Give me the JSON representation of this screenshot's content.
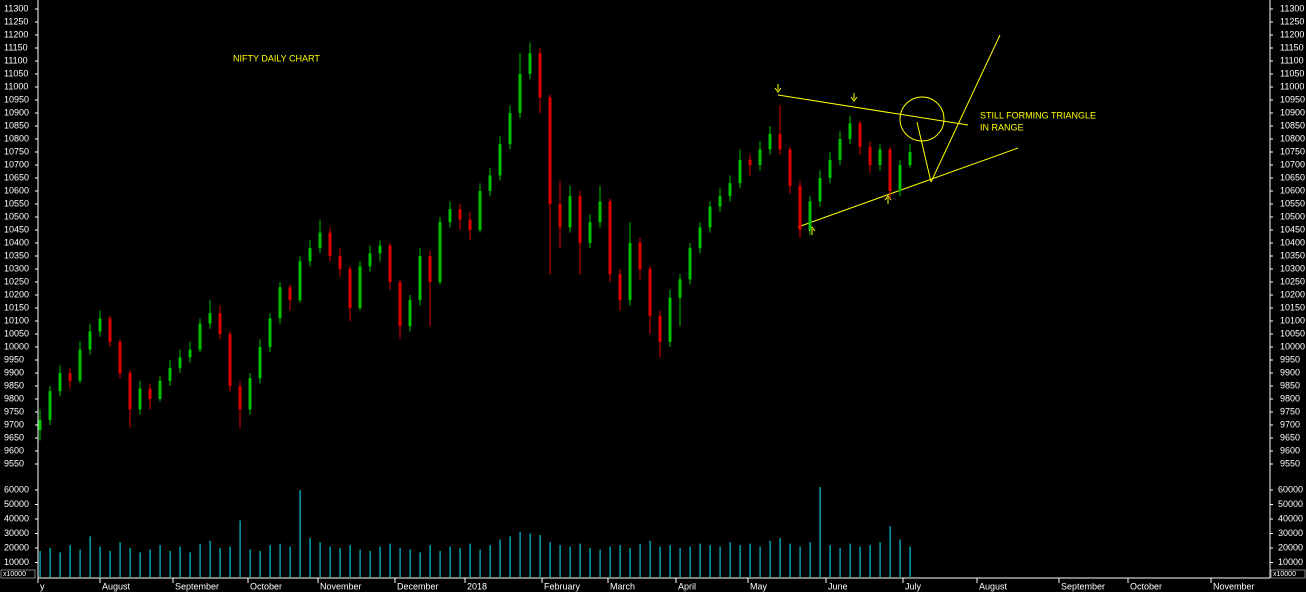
{
  "chart_data": {
    "type": "candlestick",
    "title": "NIFTY DAILY CHART",
    "annotations": [
      "STILL FORMING TRIANGLE",
      "IN RANGE"
    ],
    "volume_unit": "x10000",
    "up_color": "#00c000",
    "down_color": "#e00000",
    "volume_color": "#00c8e0",
    "xlim": [
      -0.2,
      123
    ],
    "xticks": [
      {
        "value": -0.2,
        "label": "y"
      },
      {
        "value": 6,
        "label": "August"
      },
      {
        "value": 13.3,
        "label": "September"
      },
      {
        "value": 20.8,
        "label": "October"
      },
      {
        "value": 27.8,
        "label": "November"
      },
      {
        "value": 35.5,
        "label": "December"
      },
      {
        "value": 42.5,
        "label": "2018"
      },
      {
        "value": 50.2,
        "label": "February"
      },
      {
        "value": 56.8,
        "label": "March"
      },
      {
        "value": 63.6,
        "label": "April"
      },
      {
        "value": 70.8,
        "label": "May"
      },
      {
        "value": 78.6,
        "label": "June"
      },
      {
        "value": 86.3,
        "label": "July"
      },
      {
        "value": 93.7,
        "label": "August"
      },
      {
        "value": 101.9,
        "label": "September"
      },
      {
        "value": 108.8,
        "label": "October"
      },
      {
        "value": 117.1,
        "label": "November"
      }
    ],
    "ylim": [
      9530,
      11320
    ],
    "yticks": [
      9550,
      9600,
      9650,
      9700,
      9750,
      9800,
      9850,
      9900,
      9950,
      10000,
      10050,
      10100,
      10150,
      10200,
      10250,
      10300,
      10350,
      10400,
      10450,
      10500,
      10550,
      10600,
      10650,
      10700,
      10750,
      10800,
      10850,
      10900,
      10950,
      11000,
      11050,
      11100,
      11150,
      11200,
      11250,
      11300
    ],
    "y2lim": [
      0,
      62000
    ],
    "y2ticks": [
      10000,
      20000,
      30000,
      40000,
      50000,
      60000
    ],
    "open": [
      9680,
      9720,
      9830,
      9900,
      9870,
      9990,
      10060,
      10110,
      10020,
      9900,
      9760,
      9840,
      9800,
      9870,
      9920,
      9960,
      9990,
      10090,
      10130,
      10050,
      9850,
      9760,
      9880,
      10000,
      10110,
      10230,
      10180,
      10330,
      10380,
      10440,
      10350,
      10300,
      10150,
      10310,
      10360,
      10390,
      10250,
      10080,
      10180,
      10350,
      10250,
      10480,
      10530,
      10490,
      10450,
      10600,
      10660,
      10780,
      10900,
      11050,
      11130,
      10960,
      10550,
      10460,
      10580,
      10400,
      10480,
      10560,
      10280,
      10180,
      10400,
      10300,
      10120,
      10020,
      10190,
      10260,
      10380,
      10460,
      10540,
      10580,
      10630,
      10720,
      10700,
      10760,
      10820,
      10760,
      10620,
      10450,
      10560,
      10650,
      10720,
      10800,
      10860,
      10770,
      10700,
      10760,
      10600,
      10700
    ],
    "high": [
      9760,
      9850,
      9930,
      9920,
      10020,
      10090,
      10140,
      10120,
      10030,
      9910,
      9870,
      9860,
      9890,
      9950,
      9990,
      10020,
      10110,
      10180,
      10160,
      10060,
      9870,
      9900,
      10030,
      10130,
      10250,
      10240,
      10350,
      10410,
      10490,
      10460,
      10380,
      10310,
      10330,
      10390,
      10410,
      10400,
      10260,
      10200,
      10380,
      10370,
      10500,
      10560,
      10550,
      10520,
      10630,
      10690,
      10810,
      10930,
      11130,
      11170,
      11150,
      10970,
      10640,
      10620,
      10600,
      10510,
      10620,
      10570,
      10300,
      10480,
      10420,
      10310,
      10140,
      10220,
      10280,
      10400,
      10480,
      10560,
      10610,
      10660,
      10760,
      10740,
      10790,
      10850,
      10930,
      10770,
      10640,
      10580,
      10680,
      10750,
      10830,
      10890,
      10870,
      10790,
      10780,
      10770,
      10720,
      10780
    ],
    "low": [
      9640,
      9700,
      9810,
      9840,
      9860,
      9970,
      10040,
      10000,
      9880,
      9690,
      9740,
      9760,
      9790,
      9850,
      9900,
      9940,
      9980,
      10070,
      10030,
      9830,
      9690,
      9740,
      9860,
      9980,
      10090,
      10140,
      10170,
      10310,
      10360,
      10330,
      10270,
      10100,
      10140,
      10290,
      10330,
      10220,
      10030,
      10060,
      10160,
      10080,
      10240,
      10460,
      10450,
      10410,
      10440,
      10580,
      10640,
      10760,
      10880,
      11030,
      10900,
      10280,
      10380,
      10440,
      10280,
      10380,
      10460,
      10250,
      10140,
      10160,
      10260,
      10050,
      9960,
      10000,
      10080,
      10240,
      10360,
      10440,
      10520,
      10560,
      10610,
      10660,
      10680,
      10740,
      10740,
      10590,
      10420,
      10430,
      10540,
      10630,
      10700,
      10780,
      10740,
      10670,
      10680,
      10570,
      10580,
      10690
    ],
    "close": [
      9720,
      9830,
      9900,
      9870,
      9990,
      10060,
      10110,
      10020,
      9900,
      9760,
      9840,
      9800,
      9870,
      9920,
      9960,
      9990,
      10090,
      10130,
      10050,
      9850,
      9760,
      9880,
      10000,
      10110,
      10230,
      10180,
      10330,
      10380,
      10440,
      10350,
      10300,
      10150,
      10310,
      10360,
      10390,
      10250,
      10080,
      10180,
      10350,
      10250,
      10480,
      10530,
      10490,
      10450,
      10600,
      10660,
      10780,
      10900,
      11050,
      11130,
      10960,
      10550,
      10460,
      10580,
      10400,
      10480,
      10560,
      10280,
      10180,
      10400,
      10300,
      10120,
      10020,
      10190,
      10260,
      10380,
      10460,
      10540,
      10580,
      10630,
      10720,
      10700,
      10760,
      10820,
      10760,
      10620,
      10450,
      10560,
      10650,
      10720,
      10800,
      10860,
      10770,
      10700,
      10760,
      10600,
      10700,
      10750
    ],
    "volume": [
      18000,
      20000,
      17000,
      22000,
      19000,
      28000,
      21000,
      18000,
      24000,
      20000,
      17000,
      19000,
      22000,
      18000,
      21000,
      17000,
      23000,
      25000,
      20000,
      21000,
      39000,
      19000,
      18000,
      22000,
      23000,
      21000,
      60000,
      27000,
      24000,
      21000,
      20000,
      22000,
      19000,
      18000,
      21000,
      23000,
      20000,
      19000,
      17000,
      22000,
      18000,
      21000,
      20000,
      23000,
      19000,
      22000,
      26000,
      28000,
      31000,
      30000,
      29000,
      24000,
      22000,
      21000,
      23000,
      20000,
      19000,
      21000,
      22000,
      20000,
      23000,
      25000,
      21000,
      22000,
      20000,
      21000,
      23000,
      22000,
      21000,
      24000,
      22000,
      23000,
      21000,
      25000,
      27000,
      23000,
      21000,
      24000,
      62000,
      22000,
      20000,
      23000,
      21000,
      22000,
      24000,
      35000,
      26000,
      21000
    ]
  }
}
